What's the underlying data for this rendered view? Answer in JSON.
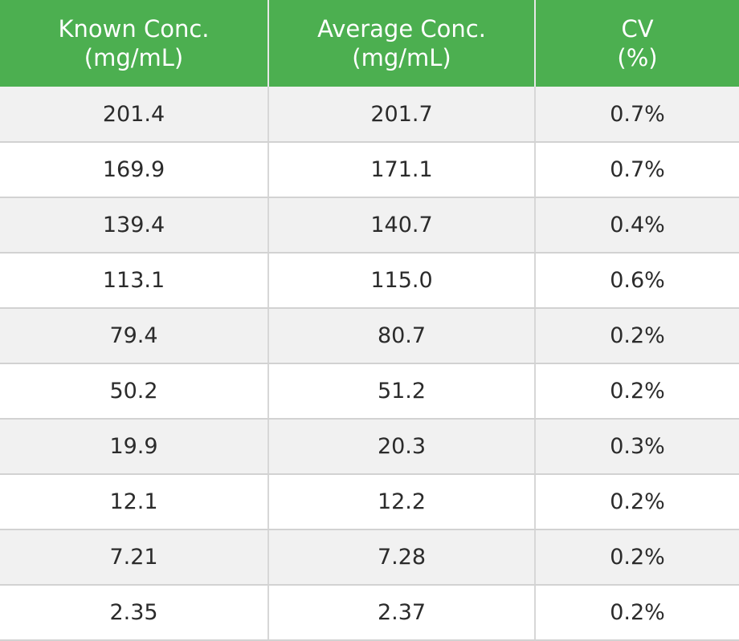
{
  "table": {
    "header_color": "#4caf50",
    "columns": [
      {
        "line1": "Known Conc.",
        "line2": "(mg/mL)"
      },
      {
        "line1": "Average Conc.",
        "line2": "(mg/mL)"
      },
      {
        "line1": "CV",
        "line2": "(%)"
      }
    ],
    "rows": [
      {
        "known": "201.4",
        "average": "201.7",
        "cv": "0.7%"
      },
      {
        "known": "169.9",
        "average": "171.1",
        "cv": "0.7%"
      },
      {
        "known": "139.4",
        "average": "140.7",
        "cv": "0.4%"
      },
      {
        "known": "113.1",
        "average": "115.0",
        "cv": "0.6%"
      },
      {
        "known": "79.4",
        "average": "80.7",
        "cv": "0.2%"
      },
      {
        "known": "50.2",
        "average": "51.2",
        "cv": "0.2%"
      },
      {
        "known": "19.9",
        "average": "20.3",
        "cv": "0.3%"
      },
      {
        "known": "12.1",
        "average": "12.2",
        "cv": "0.2%"
      },
      {
        "known": "7.21",
        "average": "7.28",
        "cv": "0.2%"
      },
      {
        "known": "2.35",
        "average": "2.37",
        "cv": "0.2%"
      }
    ]
  }
}
